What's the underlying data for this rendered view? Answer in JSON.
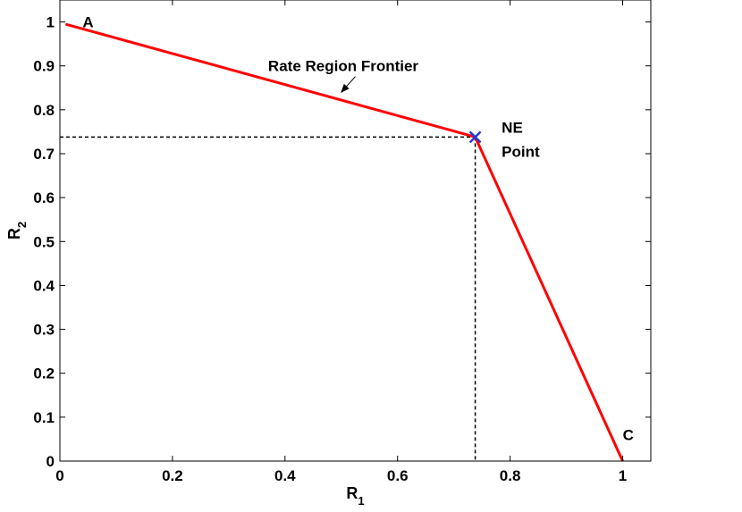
{
  "chart_data": {
    "type": "line",
    "xlabel": {
      "base": "R",
      "sub": "1"
    },
    "ylabel": {
      "base": "R",
      "sub": "2"
    },
    "xlim": [
      0,
      1.05
    ],
    "ylim": [
      0,
      1.05
    ],
    "x_ticks": [
      0,
      0.2,
      0.4,
      0.6,
      0.8,
      1
    ],
    "x_tick_labels": [
      "0",
      "0.2",
      "0.4",
      "0.6",
      "0.8",
      "1"
    ],
    "y_ticks": [
      0,
      0.1,
      0.2,
      0.3,
      0.4,
      0.5,
      0.6,
      0.7,
      0.8,
      0.9,
      1
    ],
    "y_tick_labels": [
      "0",
      "0.1",
      "0.2",
      "0.3",
      "0.4",
      "0.5",
      "0.6",
      "0.7",
      "0.8",
      "0.9",
      "1"
    ],
    "grid": false,
    "series": [
      {
        "color": "#ff0000",
        "x": [
          0.01,
          0.738,
          1.0
        ],
        "y": [
          0.995,
          0.738,
          0.0
        ]
      }
    ],
    "ne_point": {
      "x": 0.738,
      "y": 0.738,
      "color": "#1f3bd6",
      "marker": "x"
    },
    "guide_lines": {
      "style": "dashed",
      "color": "#000000",
      "x": 0.738,
      "y": 0.738
    },
    "annotations": {
      "A": {
        "text": "A",
        "x": 0.05,
        "y": 1.0
      },
      "C": {
        "text": "C",
        "x": 1.01,
        "y": 0.06
      },
      "ne_line1": {
        "text": "NE",
        "x": 0.785,
        "y": 0.76
      },
      "ne_line2": {
        "text": "Point",
        "x": 0.785,
        "y": 0.705
      },
      "frontier": {
        "text": "Rate Region Frontier",
        "x": 0.37,
        "y": 0.9,
        "arrow_to": [
          0.5,
          0.84
        ]
      }
    }
  }
}
